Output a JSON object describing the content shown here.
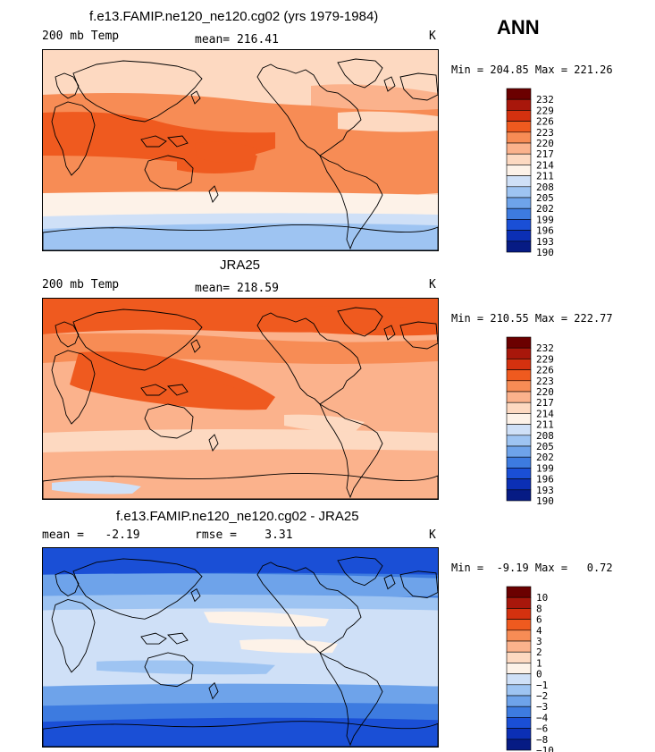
{
  "season": "ANN",
  "panels": [
    {
      "title": "f.e13.FAMIP.ne120_ne120.cg02 (yrs 1979-1984)",
      "left_label": "200 mb Temp",
      "center_label": "mean= 216.41",
      "units": "K",
      "min_max": "Min = 204.85 Max = 221.26",
      "palette": "abs",
      "field": "model"
    },
    {
      "title": "JRA25",
      "left_label": "200 mb Temp",
      "center_label": "mean= 218.59",
      "units": "K",
      "min_max": "Min = 210.55 Max = 222.77",
      "palette": "abs",
      "field": "obs"
    },
    {
      "title": "f.e13.FAMIP.ne120_ne120.cg02 - JRA25",
      "left_label": "mean =   -2.19",
      "center_label": "rmse =    3.31",
      "units": "K",
      "min_max": "Min =  -9.19 Max =   0.72",
      "palette": "diff",
      "field": "diff"
    }
  ],
  "chart_data": [
    {
      "type": "heatmap",
      "title": "f.e13.FAMIP.ne120_ne120.cg02 (yrs 1979-1984)",
      "variable": "200 mb Temp",
      "units": "K",
      "mean": 216.41,
      "min": 204.85,
      "max": 221.26,
      "colorbar_levels": [
        232,
        229,
        226,
        223,
        220,
        217,
        214,
        211,
        208,
        205,
        202,
        199,
        196,
        193,
        190
      ]
    },
    {
      "type": "heatmap",
      "title": "JRA25",
      "variable": "200 mb Temp",
      "units": "K",
      "mean": 218.59,
      "min": 210.55,
      "max": 222.77,
      "colorbar_levels": [
        232,
        229,
        226,
        223,
        220,
        217,
        214,
        211,
        208,
        205,
        202,
        199,
        196,
        193,
        190
      ]
    },
    {
      "type": "heatmap",
      "title": "f.e13.FAMIP.ne120_ne120.cg02 - JRA25",
      "variable": "difference",
      "units": "K",
      "mean": -2.19,
      "rmse": 3.31,
      "min": -9.19,
      "max": 0.72,
      "colorbar_levels": [
        "10",
        "8",
        "6",
        "4",
        "3",
        "2",
        "1",
        "0",
        "−1",
        "−2",
        "−3",
        "−4",
        "−6",
        "−8",
        "−10"
      ]
    }
  ],
  "colors": {
    "abs_scale": [
      "#6b0000",
      "#a8170b",
      "#d4310f",
      "#ef5a1f",
      "#f78c55",
      "#fbb28c",
      "#fdd9c1",
      "#fdf2e8",
      "#cfe0f7",
      "#9ec4f2",
      "#6ea3ea",
      "#3d7be0",
      "#1a4fd6",
      "#0b2fb5",
      "#061b84"
    ],
    "diff_scale": [
      "#6b0000",
      "#a8170b",
      "#d4310f",
      "#ef5a1f",
      "#f78c55",
      "#fbb28c",
      "#fdd9c1",
      "#fdf2e8",
      "#cfe0f7",
      "#9ec4f2",
      "#6ea3ea",
      "#3d7be0",
      "#1a4fd6",
      "#0b2fb5",
      "#061b84"
    ]
  }
}
